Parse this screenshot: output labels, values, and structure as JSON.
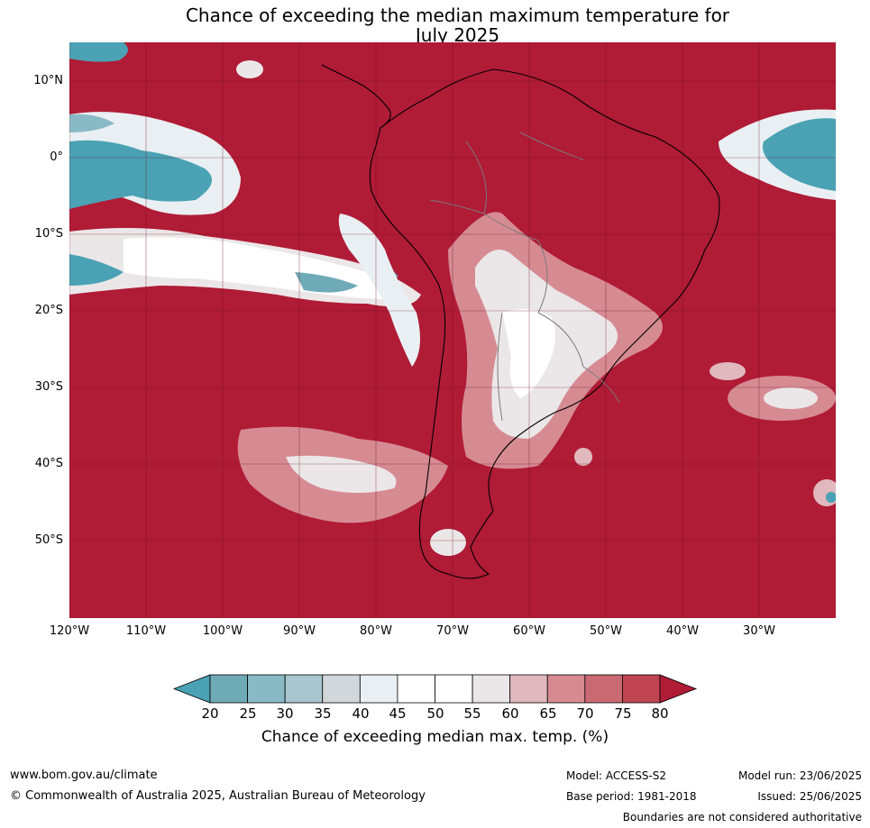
{
  "title": {
    "line1": "Chance of exceeding the median maximum temperature for",
    "line2": "July 2025"
  },
  "map": {
    "lat_ticks": [
      "10°N",
      "0°",
      "10°S",
      "20°S",
      "30°S",
      "40°S",
      "50°S"
    ],
    "lon_ticks": [
      "120°W",
      "110°W",
      "100°W",
      "90°W",
      "80°W",
      "70°W",
      "60°W",
      "50°W",
      "40°W",
      "30°W"
    ],
    "dominant_color": "#b01b36"
  },
  "colorbar": {
    "ticks": [
      "20",
      "25",
      "30",
      "35",
      "40",
      "45",
      "50",
      "55",
      "60",
      "65",
      "70",
      "75",
      "80"
    ],
    "colors": [
      "#4aa2b4",
      "#6faab7",
      "#8ab9c6",
      "#a8c6cd",
      "#d1d7da",
      "#e9eff2",
      "#ffffff",
      "#ffffff",
      "#ebe7e8",
      "#e0b8bd",
      "#d68b93",
      "#c96972",
      "#c14452",
      "#b01b36"
    ],
    "label": "Chance of exceeding median max. temp. (%)"
  },
  "footer": {
    "website": "www.bom.gov.au/climate",
    "copyright": "© Commonwealth of Australia 2025, Australian Bureau of Meteorology",
    "model": "Model: ACCESS-S2",
    "base_period": "Base period: 1981-2018",
    "model_run": "Model run: 23/06/2025",
    "issued": "Issued: 25/06/2025",
    "disclaimer": "Boundaries are not considered authoritative"
  }
}
